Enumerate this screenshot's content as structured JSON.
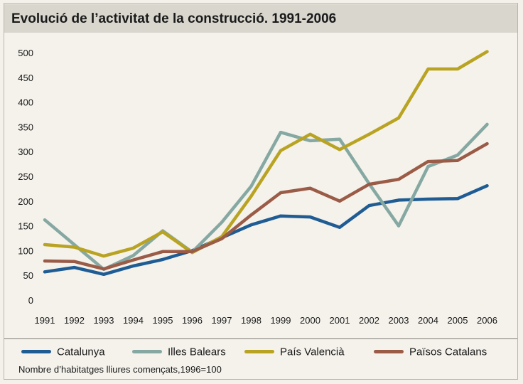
{
  "chart_data": {
    "type": "line",
    "title": "Evolució de l’activitat de la construcció. 1991-2006",
    "xlabel": "",
    "ylabel": "",
    "note": "Nombre d’habitatges lliures començats,1996=100",
    "x": [
      "1991",
      "1992",
      "1993",
      "1994",
      "1995",
      "1996",
      "1997",
      "1998",
      "1999",
      "2000",
      "2001",
      "2002",
      "2003",
      "2004",
      "2005",
      "2006"
    ],
    "ylim": [
      0,
      500
    ],
    "yticks": [
      "0",
      "50",
      "100",
      "150",
      "200",
      "250",
      "300",
      "350",
      "400",
      "450",
      "500"
    ],
    "grid": false,
    "legend_position": "bottom",
    "series": [
      {
        "name": "Catalunya",
        "color": "#1f5c94",
        "values": [
          57,
          66,
          52,
          69,
          82,
          100,
          126,
          152,
          170,
          168,
          147,
          191,
          202,
          204,
          205,
          231
        ]
      },
      {
        "name": "Illes Balears",
        "color": "#86a8a2",
        "values": [
          162,
          112,
          62,
          90,
          140,
          97,
          157,
          230,
          339,
          322,
          325,
          235,
          150,
          270,
          293,
          355
        ]
      },
      {
        "name": "País Valencià",
        "color": "#b9a322",
        "values": [
          112,
          107,
          89,
          105,
          138,
          96,
          128,
          210,
          302,
          335,
          304,
          335,
          368,
          467,
          467,
          502
        ]
      },
      {
        "name": "Països Catalans",
        "color": "#9a5b47",
        "values": [
          79,
          78,
          63,
          81,
          98,
          98,
          124,
          172,
          217,
          226,
          200,
          234,
          244,
          280,
          282,
          316
        ]
      }
    ]
  }
}
